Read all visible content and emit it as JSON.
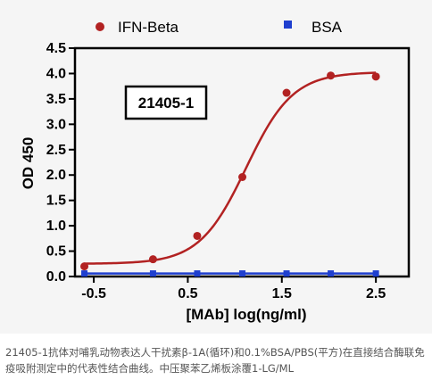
{
  "chart_data": {
    "type": "scatter",
    "xlabel": "[MAb] log(ng/ml)",
    "ylabel": "OD 450",
    "xlim": [
      -0.7,
      2.85
    ],
    "ylim": [
      0,
      4.5
    ],
    "xticks": [
      -0.5,
      0.5,
      1.5,
      2.5
    ],
    "xtick_labels": [
      "-0.5",
      "0.5",
      "1.5",
      "2.5"
    ],
    "yticks": [
      0,
      0.5,
      1.0,
      1.5,
      2.0,
      2.5,
      3.0,
      3.5,
      4.0,
      4.5
    ],
    "ytick_labels": [
      "0.0",
      "0.5",
      "1.0",
      "1.5",
      "2.0",
      "2.5",
      "3.0",
      "3.5",
      "4.0",
      "4.5"
    ],
    "annotation": "21405-1",
    "legend_position": "top",
    "grid": false,
    "series": [
      {
        "name": "IFN-Beta",
        "marker": "circle",
        "color": "#b22222",
        "x": [
          -0.6,
          0.13,
          0.6,
          1.08,
          1.55,
          2.02,
          2.5
        ],
        "y": [
          0.2,
          0.34,
          0.8,
          1.96,
          3.62,
          3.96,
          3.94
        ],
        "fit_curve": {
          "bottom": 0.25,
          "top": 4.03,
          "logEC50": 1.12,
          "hill": 1.75
        }
      },
      {
        "name": "BSA",
        "marker": "square",
        "color": "#1f3fcf",
        "x": [
          -0.6,
          0.13,
          0.6,
          1.08,
          1.55,
          2.02,
          2.5
        ],
        "y": [
          0.06,
          0.06,
          0.06,
          0.06,
          0.06,
          0.06,
          0.06
        ]
      }
    ]
  },
  "caption": "21405-1抗体对哺乳动物表达人干扰素β-1A(循环)和0.1%BSA/PBS(平方)在直接结合酶联免疫吸附测定中的代表性结合曲线。中压聚苯乙烯板涂覆1-LG/ML"
}
